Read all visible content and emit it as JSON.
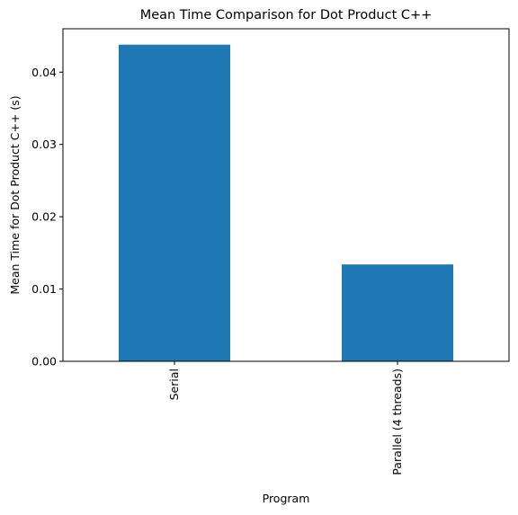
{
  "chart_data": {
    "type": "bar",
    "title": "Mean Time Comparison for Dot Product C++",
    "xlabel": "Program",
    "ylabel": "Mean Time for Dot Product C++ (s)",
    "categories": [
      "Serial",
      "Parallel (4 threads)"
    ],
    "values": [
      0.0438,
      0.0134
    ],
    "ylim": [
      0,
      0.046
    ],
    "yticks": [
      0.0,
      0.01,
      0.02,
      0.03,
      0.04
    ],
    "ytick_labels": [
      "0.00",
      "0.01",
      "0.02",
      "0.03",
      "0.04"
    ],
    "bar_color": "#1f77b4",
    "grid": false,
    "legend": "none"
  }
}
